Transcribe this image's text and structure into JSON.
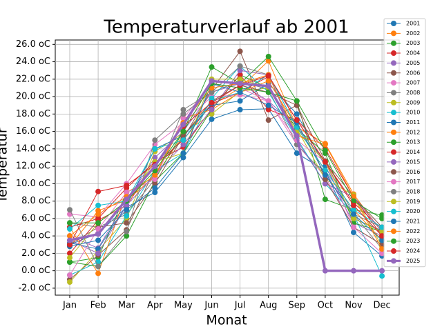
{
  "chart_data": {
    "type": "line",
    "title": "Temperaturverlauf ab 2001",
    "x_label": "Monat",
    "y_label": "Temperatur",
    "categories": [
      "Jan",
      "Feb",
      "Mar",
      "Apr",
      "May",
      "Jun",
      "Jul",
      "Aug",
      "Sep",
      "Oct",
      "Nov",
      "Dec"
    ],
    "ylim": [
      -2.8,
      26.5
    ],
    "yticks": [
      {
        "value": -2,
        "label": "-2.0 oC"
      },
      {
        "value": 0,
        "label": "0.0 oC"
      },
      {
        "value": 2,
        "label": "2.0 oC"
      },
      {
        "value": 4,
        "label": "4.0 oC"
      },
      {
        "value": 6,
        "label": "6.0 oC"
      },
      {
        "value": 8,
        "label": "8.0 oC"
      },
      {
        "value": 10,
        "label": "10.0 oC"
      },
      {
        "value": 12,
        "label": "12.0 oC"
      },
      {
        "value": 14,
        "label": "14.0 oC"
      },
      {
        "value": 16,
        "label": "16.0 oC"
      },
      {
        "value": 18,
        "label": "18.0 oC"
      },
      {
        "value": 20,
        "label": "20.0 oC"
      },
      {
        "value": 22,
        "label": "22.0 oC"
      },
      {
        "value": 24,
        "label": "24.0 oC"
      },
      {
        "value": 26,
        "label": "26.0 oC"
      }
    ],
    "grid": true,
    "legend": "right",
    "series": [
      {
        "name": "2001",
        "color": "#1f77b4",
        "values": [
          3.0,
          4.3,
          7.3,
          9.0,
          13.0,
          17.4,
          18.5,
          18.6,
          13.5,
          11.5,
          4.4,
          1.7
        ]
      },
      {
        "name": "2002",
        "color": "#ff7f0e",
        "values": [
          2.8,
          6.9,
          8.1,
          10.8,
          15.6,
          19.0,
          21.0,
          24.1,
          16.5,
          14.6,
          8.8,
          4.4
        ]
      },
      {
        "name": "2003",
        "color": "#2ca02c",
        "values": [
          1.0,
          1.5,
          9.0,
          10.5,
          16.0,
          23.4,
          21.5,
          24.6,
          19.5,
          8.2,
          7.0,
          6.4
        ]
      },
      {
        "name": "2004",
        "color": "#d62728",
        "values": [
          2.0,
          5.8,
          7.5,
          12.2,
          15.0,
          19.2,
          20.5,
          22.3,
          17.3,
          12.5,
          7.8,
          4.8
        ]
      },
      {
        "name": "2005",
        "color": "#9467bd",
        "values": [
          4.0,
          2.6,
          8.0,
          13.0,
          16.0,
          20.5,
          21.5,
          19.5,
          16.5,
          11.5,
          5.5,
          4.0
        ]
      },
      {
        "name": "2006",
        "color": "#8c564b",
        "values": [
          -1.0,
          1.8,
          4.7,
          11.7,
          15.2,
          20.8,
          25.2,
          17.3,
          19.0,
          12.6,
          8.5,
          5.0
        ]
      },
      {
        "name": "2007",
        "color": "#e377c2",
        "values": [
          6.5,
          6.2,
          10.0,
          14.5,
          17.0,
          20.0,
          20.2,
          19.5,
          14.5,
          10.8,
          5.0,
          3.0
        ]
      },
      {
        "name": "2008",
        "color": "#7f7f7f",
        "values": [
          5.5,
          5.0,
          6.5,
          10.5,
          18.5,
          20.5,
          21.8,
          20.8,
          14.5,
          11.0,
          6.5,
          2.5
        ]
      },
      {
        "name": "2009",
        "color": "#bcbd22",
        "values": [
          -1.3,
          2.3,
          6.0,
          13.7,
          15.8,
          18.0,
          20.6,
          21.0,
          16.3,
          10.5,
          8.7,
          2.8
        ]
      },
      {
        "name": "2010",
        "color": "#17becf",
        "values": [
          -0.5,
          1.0,
          6.3,
          11.5,
          13.5,
          19.8,
          23.5,
          20.5,
          15.2,
          10.0,
          6.5,
          -0.6
        ]
      },
      {
        "name": "2011",
        "color": "#1f77b4",
        "values": [
          3.2,
          2.5,
          7.5,
          14.0,
          15.5,
          19.0,
          19.5,
          21.5,
          18.0,
          12.0,
          6.0,
          4.6
        ]
      },
      {
        "name": "2012",
        "color": "#ff7f0e",
        "values": [
          5.0,
          -0.3,
          9.0,
          10.8,
          17.5,
          18.5,
          20.5,
          21.8,
          16.5,
          11.5,
          7.0,
          3.5
        ]
      },
      {
        "name": "2013",
        "color": "#2ca02c",
        "values": [
          1.0,
          0.5,
          4.0,
          10.3,
          13.5,
          18.5,
          22.5,
          21.0,
          16.3,
          13.5,
          5.5,
          4.5
        ]
      },
      {
        "name": "2014",
        "color": "#d62728",
        "values": [
          5.0,
          6.0,
          9.5,
          12.5,
          14.2,
          18.6,
          22.5,
          18.5,
          17.3,
          14.0,
          8.5,
          4.0
        ]
      },
      {
        "name": "2015",
        "color": "#9467bd",
        "values": [
          3.5,
          2.0,
          7.5,
          11.0,
          14.5,
          18.5,
          23.0,
          22.5,
          15.0,
          10.0,
          8.5,
          4.5
        ]
      },
      {
        "name": "2016",
        "color": "#8c564b",
        "values": [
          3.0,
          5.0,
          5.5,
          10.0,
          15.5,
          19.5,
          21.3,
          20.5,
          19.0,
          10.5,
          5.0,
          3.0
        ]
      },
      {
        "name": "2017",
        "color": "#e377c2",
        "values": [
          -0.5,
          4.8,
          9.0,
          10.5,
          17.5,
          21.5,
          21.0,
          19.5,
          15.0,
          12.5,
          5.0,
          2.0
        ]
      },
      {
        "name": "2018",
        "color": "#7f7f7f",
        "values": [
          7.0,
          0.5,
          4.5,
          15.0,
          18.0,
          20.5,
          23.5,
          22.5,
          16.5,
          12.5,
          6.5,
          5.0
        ]
      },
      {
        "name": "2019",
        "color": "#bcbd22",
        "values": [
          1.5,
          5.5,
          8.0,
          12.5,
          13.5,
          22.0,
          22.0,
          21.0,
          16.0,
          12.5,
          6.0,
          4.5
        ]
      },
      {
        "name": "2020",
        "color": "#17becf",
        "values": [
          4.8,
          7.5,
          8.0,
          14.0,
          15.0,
          19.5,
          20.5,
          22.5,
          16.5,
          11.5,
          7.0,
          5.0
        ]
      },
      {
        "name": "2021",
        "color": "#1f77b4",
        "values": [
          2.8,
          3.5,
          7.0,
          9.5,
          13.5,
          21.5,
          20.5,
          19.0,
          17.0,
          11.0,
          6.5,
          3.5
        ]
      },
      {
        "name": "2022",
        "color": "#ff7f0e",
        "values": [
          4.0,
          6.5,
          8.5,
          11.0,
          17.0,
          21.0,
          21.5,
          22.5,
          15.5,
          14.5,
          8.5,
          2.5
        ]
      },
      {
        "name": "2023",
        "color": "#2ca02c",
        "values": [
          5.5,
          5.5,
          8.0,
          11.5,
          16.0,
          21.5,
          21.0,
          20.5,
          19.5,
          13.8,
          8.0,
          6.0
        ]
      },
      {
        "name": "2024",
        "color": "#d62728",
        "values": [
          3.0,
          9.1,
          9.8,
          12.2,
          16.6,
          19.3,
          21.3,
          22.4,
          17.3,
          12.5,
          7.5,
          4.0
        ]
      },
      {
        "name": "2025",
        "color": "#9467bd",
        "values": [
          3.5,
          4.2,
          8.2,
          12.0,
          16.8,
          21.8,
          21.5,
          21.2,
          15.5,
          0,
          0,
          0
        ]
      }
    ]
  }
}
